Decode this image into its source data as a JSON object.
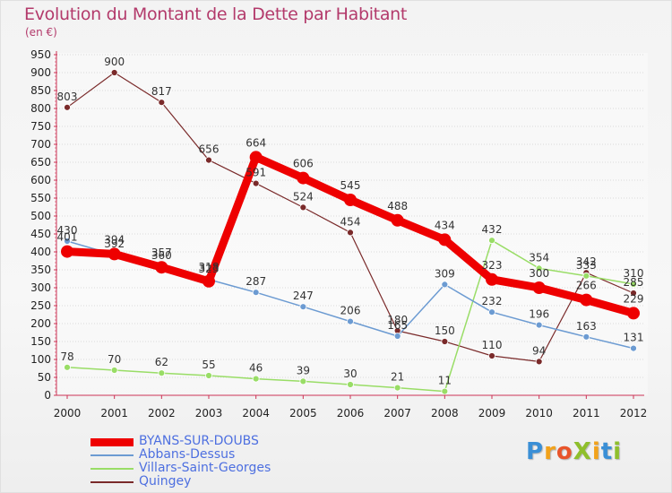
{
  "title": "Evolution du Montant de la Dette par Habitant",
  "subtitle": "(en €)",
  "logo": {
    "text": "ProXiti",
    "letters": [
      {
        "ch": "P",
        "color": "#3a8fd6"
      },
      {
        "ch": "r",
        "color": "#f2a21b"
      },
      {
        "ch": "o",
        "color": "#e8542a"
      },
      {
        "ch": "X",
        "color": "#8fbf2c"
      },
      {
        "ch": "i",
        "color": "#f2a21b"
      },
      {
        "ch": "t",
        "color": "#3a8fd6"
      },
      {
        "ch": "i",
        "color": "#8fbf2c"
      }
    ]
  },
  "chart_data": {
    "type": "line",
    "title": "Evolution du Montant de la Dette par Habitant",
    "subtitle": "(en €)",
    "xlabel": "",
    "ylabel": "",
    "x": [
      "2000",
      "2001",
      "2002",
      "2003",
      "2004",
      "2005",
      "2006",
      "2007",
      "2008",
      "2009",
      "2010",
      "2011",
      "2012"
    ],
    "ylim": [
      0,
      950
    ],
    "yticks": [
      0,
      50,
      100,
      150,
      200,
      250,
      300,
      350,
      400,
      450,
      500,
      550,
      600,
      650,
      700,
      750,
      800,
      850,
      900,
      950
    ],
    "grid": "horizontal",
    "legend_position": "bottom-left",
    "series": [
      {
        "name": "BYANS-SUR-DOUBS",
        "color": "#ee0000",
        "width": 9,
        "marker": 7,
        "values": [
          401,
          394,
          357,
          318,
          664,
          606,
          545,
          488,
          434,
          323,
          300,
          266,
          229
        ],
        "labels": [
          "401",
          "394",
          "357",
          "318",
          "664",
          "606",
          "545",
          "488",
          "434",
          "323",
          "300",
          "266",
          "229"
        ]
      },
      {
        "name": "Abbans-Dessus",
        "color": "#6c9bd2",
        "width": 1.5,
        "marker": 3.5,
        "values": [
          430,
          392,
          360,
          323,
          287,
          247,
          206,
          165,
          309,
          232,
          196,
          163,
          131
        ],
        "labels": [
          "430",
          "392",
          "360",
          "323",
          "287",
          "247",
          "206",
          "165",
          "309",
          "232",
          "196",
          "163",
          "131"
        ]
      },
      {
        "name": "Villars-Saint-Georges",
        "color": "#99dd66",
        "width": 1.5,
        "marker": 3.5,
        "values": [
          78,
          70,
          62,
          55,
          46,
          39,
          30,
          21,
          11,
          432,
          354,
          333,
          310
        ],
        "labels": [
          "78",
          "70",
          "62",
          "55",
          "46",
          "39",
          "30",
          "21",
          "11",
          "432",
          "354",
          "333",
          "310"
        ]
      },
      {
        "name": "Quingey",
        "color": "#7a2a2a",
        "width": 1.2,
        "marker": 3.5,
        "values": [
          803,
          900,
          817,
          656,
          591,
          524,
          454,
          180,
          150,
          110,
          94,
          342,
          285
        ],
        "labels": [
          "803",
          "900",
          "817",
          "656",
          "591",
          "524",
          "454",
          "180",
          "150",
          "110",
          "94",
          "342",
          "285"
        ]
      }
    ]
  }
}
